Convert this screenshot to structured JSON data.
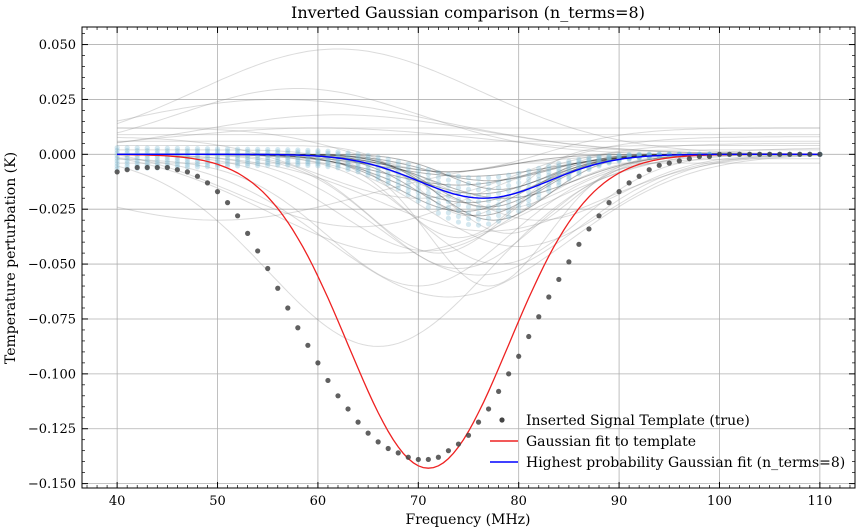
{
  "chart_data": {
    "type": "line",
    "title": "Inverted Gaussian comparison (n_terms=8)",
    "xlabel": "Frequency (MHz)",
    "ylabel": "Temperature perturbation (K)",
    "xlim": [
      36.5,
      113.5
    ],
    "ylim": [
      -0.152,
      0.058
    ],
    "x_ticks": [
      40,
      50,
      60,
      70,
      80,
      90,
      100,
      110
    ],
    "y_ticks": [
      -0.15,
      -0.125,
      -0.1,
      -0.075,
      -0.05,
      -0.025,
      0.0,
      0.025,
      0.05
    ],
    "y_tick_labels": [
      "−0.150",
      "−0.125",
      "−0.100",
      "−0.075",
      "−0.050",
      "−0.025",
      "0.000",
      "0.025",
      "0.050"
    ],
    "grid": true,
    "legend_position": "lower-right",
    "colors": {
      "template_points": "#444444",
      "gaussian_fit": "#ee2222",
      "best_fit": "#0000ff",
      "posterior_samples_gray": "#888888",
      "posterior_samples_dark": "#222222",
      "residual_points": "#7ab8d0"
    },
    "series": [
      {
        "name": "Inserted Signal Template (true)",
        "style": "scatter",
        "x": [
          40,
          41,
          42,
          43,
          44,
          45,
          46,
          47,
          48,
          49,
          50,
          51,
          52,
          53,
          54,
          55,
          56,
          57,
          58,
          59,
          60,
          61,
          62,
          63,
          64,
          65,
          66,
          67,
          68,
          69,
          70,
          71,
          72,
          73,
          74,
          75,
          76,
          77,
          78,
          79,
          80,
          81,
          82,
          83,
          84,
          85,
          86,
          87,
          88,
          89,
          90,
          91,
          92,
          93,
          94,
          95,
          96,
          97,
          98,
          99,
          100,
          101,
          102,
          103,
          104,
          105,
          106,
          107,
          108,
          109,
          110
        ],
        "y": [
          -0.008,
          -0.007,
          -0.006,
          -0.006,
          -0.006,
          -0.006,
          -0.007,
          -0.008,
          -0.01,
          -0.013,
          -0.017,
          -0.022,
          -0.028,
          -0.036,
          -0.044,
          -0.052,
          -0.061,
          -0.07,
          -0.079,
          -0.087,
          -0.095,
          -0.103,
          -0.11,
          -0.116,
          -0.122,
          -0.127,
          -0.131,
          -0.134,
          -0.136,
          -0.138,
          -0.139,
          -0.139,
          -0.138,
          -0.135,
          -0.132,
          -0.128,
          -0.122,
          -0.116,
          -0.108,
          -0.1,
          -0.092,
          -0.083,
          -0.074,
          -0.065,
          -0.057,
          -0.049,
          -0.041,
          -0.034,
          -0.028,
          -0.022,
          -0.017,
          -0.013,
          -0.01,
          -0.007,
          -0.005,
          -0.004,
          -0.003,
          -0.002,
          -0.001,
          -0.001,
          0.0,
          0.0,
          0.0,
          0.0,
          0.0,
          0.0,
          0.0,
          0.0,
          0.0,
          0.0,
          0.0
        ]
      },
      {
        "name": "Gaussian fit to template",
        "style": "line",
        "amplitude": -0.143,
        "center": 71.0,
        "sigma": 8.0,
        "offset": 0.0
      },
      {
        "name": "Highest probability Gaussian fit (n_terms=8)",
        "style": "line",
        "amplitude": -0.02,
        "center": 76.5,
        "sigma": 6.5,
        "offset": 0.0
      }
    ],
    "posterior_samples": {
      "gray": [
        {
          "a": -0.0875,
          "c": 66,
          "s": 11,
          "o": 0.0
        },
        {
          "a": -0.065,
          "c": 73,
          "s": 12,
          "o": 0.0
        },
        {
          "a": -0.058,
          "c": 70,
          "s": 9,
          "o": -0.002
        },
        {
          "a": -0.055,
          "c": 76,
          "s": 10,
          "o": 0.0
        },
        {
          "a": -0.05,
          "c": 78,
          "s": 8,
          "o": 0.0
        },
        {
          "a": -0.048,
          "c": 68,
          "s": 13,
          "o": 0.003
        },
        {
          "a": -0.045,
          "c": 72,
          "s": 7,
          "o": 0.0
        },
        {
          "a": -0.042,
          "c": 80,
          "s": 9,
          "o": 0.0
        },
        {
          "a": -0.04,
          "c": 74,
          "s": 6,
          "o": 0.002
        },
        {
          "a": -0.038,
          "c": 64,
          "s": 12,
          "o": 0.005
        },
        {
          "a": -0.035,
          "c": 77,
          "s": 11,
          "o": 0.0
        },
        {
          "a": -0.032,
          "c": 75,
          "s": 5,
          "o": 0.004
        },
        {
          "a": -0.03,
          "c": 82,
          "s": 8,
          "o": 0.0
        },
        {
          "a": -0.028,
          "c": 70,
          "s": 10,
          "o": 0.008
        },
        {
          "a": -0.025,
          "c": 78,
          "s": 7,
          "o": 0.0
        },
        {
          "a": -0.02,
          "c": 73,
          "s": 9,
          "o": 0.012
        },
        {
          "a": 0.048,
          "c": 62,
          "s": 14,
          "o": 0.0
        },
        {
          "a": 0.03,
          "c": 58,
          "s": 12,
          "o": 0.0
        },
        {
          "a": 0.025,
          "c": 56,
          "s": 16,
          "o": 0.0
        },
        {
          "a": 0.018,
          "c": 62,
          "s": 14,
          "o": 0.0
        },
        {
          "a": 0.012,
          "c": 60,
          "s": 16,
          "o": 0.0
        },
        {
          "a": -0.03,
          "c": 50,
          "s": 15,
          "o": 0.0
        },
        {
          "a": 0.0,
          "c": 70,
          "s": 10,
          "o": 0.006
        },
        {
          "a": 0.0,
          "c": 70,
          "s": 10,
          "o": 0.009
        },
        {
          "a": 0.0,
          "c": 70,
          "s": 10,
          "o": 0.012
        },
        {
          "a": 0.0,
          "c": 70,
          "s": 10,
          "o": -0.004
        },
        {
          "a": -0.06,
          "c": 77,
          "s": 6,
          "o": 0.0
        },
        {
          "a": -0.052,
          "c": 74,
          "s": 8,
          "o": 0.0
        },
        {
          "a": -0.036,
          "c": 79,
          "s": 6,
          "o": 0.0
        },
        {
          "a": -0.044,
          "c": 71,
          "s": 9,
          "o": 0.0
        }
      ],
      "dark": [
        {
          "a": -0.028,
          "c": 76,
          "s": 6,
          "o": 0.0
        },
        {
          "a": -0.024,
          "c": 77,
          "s": 5.5,
          "o": 0.0
        },
        {
          "a": -0.022,
          "c": 75,
          "s": 7,
          "o": 0.0
        },
        {
          "a": -0.018,
          "c": 76,
          "s": 6.5,
          "o": 0.0
        },
        {
          "a": -0.016,
          "c": 78,
          "s": 5,
          "o": 0.0
        },
        {
          "a": -0.014,
          "c": 74,
          "s": 7.5,
          "o": 0.0
        },
        {
          "a": -0.012,
          "c": 77,
          "s": 6,
          "o": 0.0
        },
        {
          "a": -0.01,
          "c": 75,
          "s": 8,
          "o": 0.0
        },
        {
          "a": -0.03,
          "c": 77.5,
          "s": 5.5,
          "o": 0.0
        },
        {
          "a": -0.008,
          "c": 73,
          "s": 6,
          "o": 0.0
        },
        {
          "a": -0.026,
          "c": 74.5,
          "s": 6.5,
          "o": 0.0
        },
        {
          "a": -0.02,
          "c": 78.5,
          "s": 7,
          "o": 0.0
        }
      ],
      "residual_bands": 9
    },
    "legend": [
      {
        "label": "Inserted Signal Template (true)",
        "marker": "dot",
        "color": "#444444"
      },
      {
        "label": "Gaussian fit to template",
        "marker": "line",
        "color": "#ee2222"
      },
      {
        "label": "Highest probability Gaussian fit (n_terms=8)",
        "marker": "line",
        "color": "#0000ff"
      }
    ]
  }
}
